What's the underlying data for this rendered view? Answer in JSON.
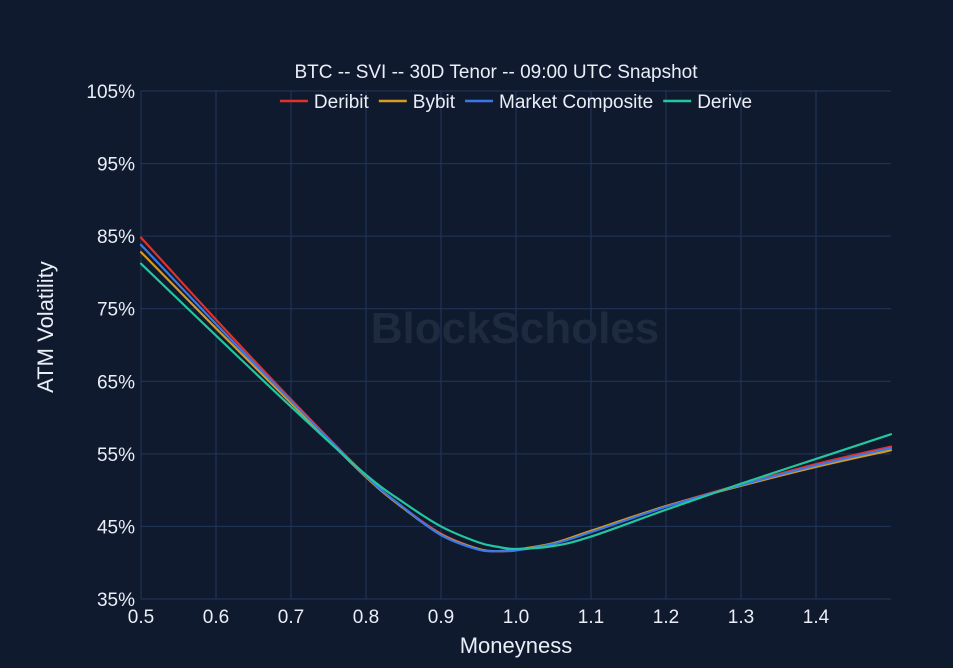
{
  "chart_data": {
    "type": "line",
    "title": "BTC -- SVI -- 30D Tenor -- 09:00 UTC Snapshot",
    "xlabel": "Moneyness",
    "ylabel": "ATM Volatility",
    "watermark": "BlockScholes",
    "xlim": [
      0.5,
      1.5
    ],
    "ylim": [
      35,
      105
    ],
    "x_ticks": [
      "0.5",
      "0.6",
      "0.7",
      "0.8",
      "0.9",
      "1.0",
      "1.1",
      "1.2",
      "1.3",
      "1.4"
    ],
    "y_ticks": [
      "35%",
      "45%",
      "55%",
      "65%",
      "75%",
      "85%",
      "95%",
      "105%"
    ],
    "grid": true,
    "legend_position": "top-center",
    "colors": {
      "background": "#0f1a2e",
      "grid": "#23365a",
      "text": "#e9eef7"
    },
    "series": [
      {
        "name": "Deribit",
        "color": "#e0322b",
        "x": [
          0.5,
          0.6,
          0.7,
          0.8,
          0.85,
          0.9,
          0.95,
          0.975,
          1.0,
          1.05,
          1.1,
          1.2,
          1.3,
          1.4,
          1.5
        ],
        "y": [
          84.8,
          73.5,
          62.5,
          52.0,
          47.6,
          44.0,
          41.9,
          41.6,
          41.7,
          42.6,
          44.3,
          47.8,
          50.8,
          53.6,
          56.0
        ]
      },
      {
        "name": "Bybit",
        "color": "#d99a1e",
        "x": [
          0.5,
          0.6,
          0.7,
          0.8,
          0.85,
          0.9,
          0.95,
          0.975,
          1.0,
          1.05,
          1.1,
          1.2,
          1.3,
          1.4,
          1.5
        ],
        "y": [
          82.8,
          72.3,
          62.0,
          51.8,
          47.5,
          43.9,
          41.9,
          41.6,
          41.8,
          42.7,
          44.4,
          47.8,
          50.6,
          53.2,
          55.5
        ]
      },
      {
        "name": "Market Composite",
        "color": "#3a78e8",
        "x": [
          0.5,
          0.6,
          0.7,
          0.8,
          0.85,
          0.9,
          0.95,
          0.975,
          1.0,
          1.05,
          1.1,
          1.2,
          1.3,
          1.4,
          1.5
        ],
        "y": [
          83.8,
          72.9,
          62.3,
          51.9,
          47.6,
          43.8,
          41.8,
          41.6,
          41.7,
          42.6,
          44.2,
          47.7,
          50.7,
          53.4,
          55.8
        ]
      },
      {
        "name": "Derive",
        "color": "#22c7a0",
        "x": [
          0.5,
          0.6,
          0.7,
          0.8,
          0.85,
          0.9,
          0.95,
          0.975,
          1.0,
          1.05,
          1.1,
          1.2,
          1.3,
          1.4,
          1.5
        ],
        "y": [
          81.2,
          71.3,
          61.5,
          52.1,
          48.3,
          45.0,
          42.8,
          42.2,
          41.9,
          42.3,
          43.6,
          47.3,
          50.9,
          54.3,
          57.7
        ]
      }
    ]
  }
}
